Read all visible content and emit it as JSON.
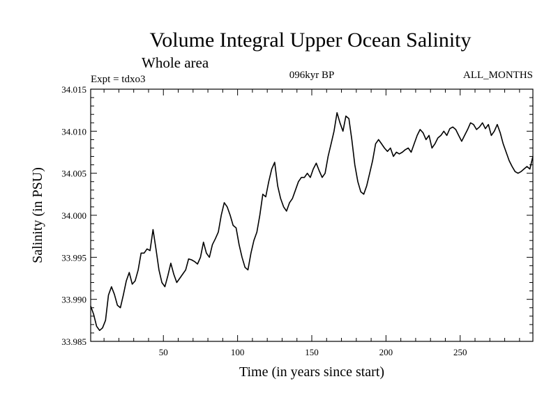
{
  "chart_data": {
    "type": "line",
    "title": "Volume Integral Upper Ocean Salinity",
    "subtitle": "Whole area",
    "annotations": {
      "left": "Expt = tdxo3",
      "center": "096kyr BP",
      "right": "ALL_MONTHS"
    },
    "xlabel": "Time (in years since start)",
    "ylabel": "Salinity (in PSU)",
    "xlim": [
      1,
      299
    ],
    "ylim": [
      33.985,
      34.015
    ],
    "xticks": [
      50,
      100,
      150,
      200,
      250
    ],
    "xtick_labels": [
      "50",
      "100",
      "150",
      "200",
      "250"
    ],
    "yticks": [
      33.985,
      33.99,
      33.995,
      34.0,
      34.005,
      34.01,
      34.015
    ],
    "ytick_labels": [
      "33.985",
      "33.990",
      "33.995",
      "34.000",
      "34.005",
      "34.010",
      "34.015"
    ],
    "grid": false,
    "series": [
      {
        "name": "Salinity",
        "color": "#000000",
        "x": [
          1,
          3,
          5,
          7,
          9,
          11,
          13,
          15,
          17,
          19,
          21,
          23,
          25,
          27,
          29,
          31,
          33,
          35,
          37,
          39,
          41,
          43,
          45,
          47,
          49,
          51,
          53,
          55,
          57,
          59,
          61,
          63,
          65,
          67,
          69,
          71,
          73,
          75,
          77,
          79,
          81,
          83,
          85,
          87,
          89,
          91,
          93,
          95,
          97,
          99,
          101,
          103,
          105,
          107,
          109,
          111,
          113,
          115,
          117,
          119,
          121,
          123,
          125,
          127,
          129,
          131,
          133,
          135,
          137,
          139,
          141,
          143,
          145,
          147,
          149,
          151,
          153,
          155,
          157,
          159,
          161,
          163,
          165,
          167,
          169,
          171,
          173,
          175,
          177,
          179,
          181,
          183,
          185,
          187,
          189,
          191,
          193,
          195,
          197,
          199,
          201,
          203,
          205,
          207,
          209,
          211,
          213,
          215,
          217,
          219,
          221,
          223,
          225,
          227,
          229,
          231,
          233,
          235,
          237,
          239,
          241,
          243,
          245,
          247,
          249,
          251,
          253,
          255,
          257,
          259,
          261,
          263,
          265,
          267,
          269,
          271,
          273,
          275,
          277,
          279,
          281,
          283,
          285,
          287,
          289,
          291,
          293,
          295,
          297,
          299
        ],
        "values": [
          33.9892,
          33.9882,
          33.9868,
          33.9863,
          33.9866,
          33.9875,
          33.9905,
          33.9915,
          33.9906,
          33.9893,
          33.989,
          33.9905,
          33.9922,
          33.9932,
          33.9918,
          33.9922,
          33.9935,
          33.9955,
          33.9955,
          33.996,
          33.9958,
          33.9983,
          33.996,
          33.9935,
          33.992,
          33.9915,
          33.9928,
          33.9943,
          33.993,
          33.992,
          33.9925,
          33.993,
          33.9935,
          33.9948,
          33.9947,
          33.9945,
          33.9942,
          33.995,
          33.9968,
          33.9955,
          33.995,
          33.9965,
          33.9972,
          33.998,
          34.0,
          34.0015,
          34.001,
          34.0,
          33.9988,
          33.9985,
          33.9965,
          33.995,
          33.9938,
          33.9935,
          33.9955,
          33.997,
          33.998,
          34.0,
          34.0025,
          34.0022,
          34.004,
          34.0055,
          34.0063,
          34.0035,
          34.002,
          34.001,
          34.0005,
          34.0015,
          34.002,
          34.003,
          34.004,
          34.0045,
          34.0045,
          34.005,
          34.0045,
          34.0055,
          34.0062,
          34.0053,
          34.0045,
          34.005,
          34.007,
          34.0085,
          34.01,
          34.0122,
          34.011,
          34.01,
          34.0118,
          34.0115,
          34.009,
          34.006,
          34.004,
          34.0028,
          34.0025,
          34.0035,
          34.005,
          34.0065,
          34.0085,
          34.009,
          34.0085,
          34.008,
          34.0076,
          34.008,
          34.007,
          34.0075,
          34.0073,
          34.0075,
          34.0078,
          34.008,
          34.0075,
          34.0085,
          34.0095,
          34.0102,
          34.0098,
          34.009,
          34.0095,
          34.008,
          34.0085,
          34.0092,
          34.0095,
          34.01,
          34.0095,
          34.0103,
          34.0105,
          34.0102,
          34.0095,
          34.0088,
          34.0095,
          34.0102,
          34.011,
          34.0108,
          34.0102,
          34.0105,
          34.011,
          34.0103,
          34.0108,
          34.0095,
          34.01,
          34.0108,
          34.0098,
          34.0085,
          34.0075,
          34.0065,
          34.0058,
          34.0052,
          34.005,
          34.0052,
          34.0055,
          34.0058,
          34.0055,
          34.007
        ]
      }
    ]
  }
}
